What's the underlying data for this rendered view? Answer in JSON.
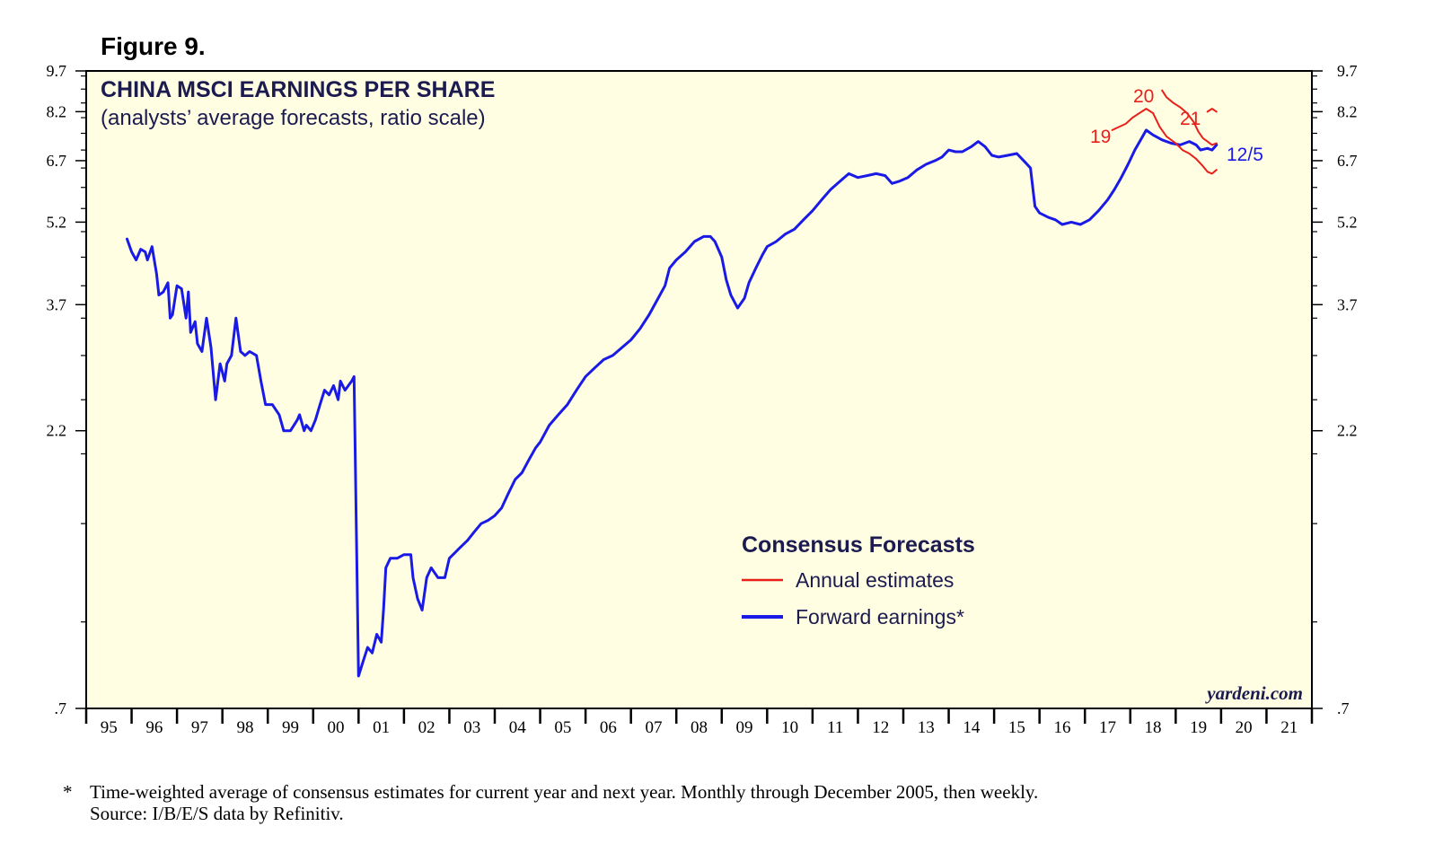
{
  "figure_label": "Figure 9.",
  "footnote": {
    "marker": "*",
    "line1": "Time-weighted average of consensus estimates for current year and next year. Monthly through December 2005, then weekly.",
    "line2": "Source: I/B/E/S data by Refinitiv."
  },
  "chart_data": {
    "type": "line",
    "scale": "log",
    "title": "CHINA MSCI EARNINGS PER SHARE",
    "subtitle": "(analysts’ average forecasts, ratio scale)",
    "ylim": [
      0.7,
      9.7
    ],
    "xlim": [
      1995.0,
      2022.0
    ],
    "y_ticks": [
      9.7,
      8.2,
      6.7,
      5.2,
      3.7,
      2.2,
      0.7
    ],
    "y_tick_labels": [
      "9.7",
      "8.2",
      "6.7",
      "5.2",
      "3.7",
      "2.2",
      ".7"
    ],
    "x_tick_labels": [
      "95",
      "96",
      "97",
      "98",
      "99",
      "00",
      "01",
      "02",
      "03",
      "04",
      "05",
      "06",
      "07",
      "08",
      "09",
      "10",
      "11",
      "12",
      "13",
      "14",
      "15",
      "16",
      "17",
      "18",
      "19",
      "20",
      "21"
    ],
    "legend": {
      "title": "Consensus Forecasts",
      "entries": [
        {
          "label": "Annual estimates",
          "color": "#e8201c"
        },
        {
          "label": "Forward earnings*",
          "color": "#1a1ae6"
        }
      ]
    },
    "watermark": "yardeni.com",
    "last_date_label": "12/5",
    "series": [
      {
        "name": "Forward earnings*",
        "color": "#1a1ae6",
        "points": [
          [
            1995.9,
            4.85
          ],
          [
            1996.0,
            4.6
          ],
          [
            1996.1,
            4.45
          ],
          [
            1996.2,
            4.65
          ],
          [
            1996.3,
            4.6
          ],
          [
            1996.35,
            4.45
          ],
          [
            1996.45,
            4.7
          ],
          [
            1996.55,
            4.2
          ],
          [
            1996.6,
            3.85
          ],
          [
            1996.7,
            3.9
          ],
          [
            1996.8,
            4.05
          ],
          [
            1996.85,
            3.5
          ],
          [
            1996.9,
            3.55
          ],
          [
            1997.0,
            4.0
          ],
          [
            1997.1,
            3.95
          ],
          [
            1997.2,
            3.5
          ],
          [
            1997.25,
            3.9
          ],
          [
            1997.3,
            3.3
          ],
          [
            1997.4,
            3.45
          ],
          [
            1997.45,
            3.15
          ],
          [
            1997.55,
            3.05
          ],
          [
            1997.65,
            3.5
          ],
          [
            1997.75,
            3.1
          ],
          [
            1997.85,
            2.5
          ],
          [
            1997.95,
            2.9
          ],
          [
            1998.0,
            2.8
          ],
          [
            1998.05,
            2.7
          ],
          [
            1998.1,
            2.9
          ],
          [
            1998.2,
            3.0
          ],
          [
            1998.3,
            3.5
          ],
          [
            1998.4,
            3.05
          ],
          [
            1998.5,
            3.0
          ],
          [
            1998.6,
            3.05
          ],
          [
            1998.75,
            3.0
          ],
          [
            1998.85,
            2.7
          ],
          [
            1998.95,
            2.45
          ],
          [
            1999.1,
            2.45
          ],
          [
            1999.25,
            2.35
          ],
          [
            1999.35,
            2.2
          ],
          [
            1999.5,
            2.2
          ],
          [
            1999.65,
            2.3
          ],
          [
            1999.7,
            2.35
          ],
          [
            1999.8,
            2.2
          ],
          [
            1999.85,
            2.25
          ],
          [
            1999.95,
            2.2
          ],
          [
            2000.05,
            2.3
          ],
          [
            2000.15,
            2.45
          ],
          [
            2000.25,
            2.6
          ],
          [
            2000.35,
            2.55
          ],
          [
            2000.45,
            2.65
          ],
          [
            2000.55,
            2.5
          ],
          [
            2000.6,
            2.7
          ],
          [
            2000.7,
            2.6
          ],
          [
            2000.85,
            2.7
          ],
          [
            2000.9,
            2.75
          ],
          [
            2001.0,
            0.8
          ],
          [
            2001.1,
            0.85
          ],
          [
            2001.2,
            0.9
          ],
          [
            2001.3,
            0.88
          ],
          [
            2001.4,
            0.95
          ],
          [
            2001.5,
            0.92
          ],
          [
            2001.55,
            1.05
          ],
          [
            2001.6,
            1.25
          ],
          [
            2001.7,
            1.3
          ],
          [
            2001.85,
            1.3
          ],
          [
            2002.0,
            1.32
          ],
          [
            2002.15,
            1.32
          ],
          [
            2002.2,
            1.2
          ],
          [
            2002.3,
            1.1
          ],
          [
            2002.4,
            1.05
          ],
          [
            2002.5,
            1.2
          ],
          [
            2002.6,
            1.25
          ],
          [
            2002.75,
            1.2
          ],
          [
            2002.9,
            1.2
          ],
          [
            2003.0,
            1.3
          ],
          [
            2003.2,
            1.35
          ],
          [
            2003.4,
            1.4
          ],
          [
            2003.55,
            1.45
          ],
          [
            2003.7,
            1.5
          ],
          [
            2003.85,
            1.52
          ],
          [
            2004.0,
            1.55
          ],
          [
            2004.15,
            1.6
          ],
          [
            2004.3,
            1.7
          ],
          [
            2004.45,
            1.8
          ],
          [
            2004.6,
            1.85
          ],
          [
            2004.75,
            1.95
          ],
          [
            2004.9,
            2.05
          ],
          [
            2005.0,
            2.1
          ],
          [
            2005.2,
            2.25
          ],
          [
            2005.4,
            2.35
          ],
          [
            2005.6,
            2.45
          ],
          [
            2005.8,
            2.6
          ],
          [
            2006.0,
            2.75
          ],
          [
            2006.2,
            2.85
          ],
          [
            2006.4,
            2.95
          ],
          [
            2006.6,
            3.0
          ],
          [
            2006.8,
            3.1
          ],
          [
            2007.0,
            3.2
          ],
          [
            2007.2,
            3.35
          ],
          [
            2007.4,
            3.55
          ],
          [
            2007.6,
            3.8
          ],
          [
            2007.75,
            4.0
          ],
          [
            2007.85,
            4.3
          ],
          [
            2008.0,
            4.45
          ],
          [
            2008.2,
            4.6
          ],
          [
            2008.4,
            4.8
          ],
          [
            2008.6,
            4.9
          ],
          [
            2008.75,
            4.9
          ],
          [
            2008.85,
            4.8
          ],
          [
            2009.0,
            4.5
          ],
          [
            2009.1,
            4.1
          ],
          [
            2009.2,
            3.85
          ],
          [
            2009.35,
            3.65
          ],
          [
            2009.5,
            3.8
          ],
          [
            2009.6,
            4.05
          ],
          [
            2009.75,
            4.3
          ],
          [
            2009.9,
            4.55
          ],
          [
            2010.0,
            4.7
          ],
          [
            2010.2,
            4.8
          ],
          [
            2010.4,
            4.95
          ],
          [
            2010.6,
            5.05
          ],
          [
            2010.8,
            5.25
          ],
          [
            2011.0,
            5.45
          ],
          [
            2011.2,
            5.7
          ],
          [
            2011.4,
            5.95
          ],
          [
            2011.6,
            6.15
          ],
          [
            2011.8,
            6.35
          ],
          [
            2012.0,
            6.25
          ],
          [
            2012.2,
            6.3
          ],
          [
            2012.4,
            6.35
          ],
          [
            2012.6,
            6.3
          ],
          [
            2012.75,
            6.1
          ],
          [
            2012.9,
            6.15
          ],
          [
            2013.1,
            6.25
          ],
          [
            2013.3,
            6.45
          ],
          [
            2013.5,
            6.6
          ],
          [
            2013.7,
            6.7
          ],
          [
            2013.85,
            6.8
          ],
          [
            2014.0,
            7.0
          ],
          [
            2014.15,
            6.95
          ],
          [
            2014.3,
            6.95
          ],
          [
            2014.5,
            7.1
          ],
          [
            2014.65,
            7.25
          ],
          [
            2014.8,
            7.1
          ],
          [
            2014.95,
            6.85
          ],
          [
            2015.1,
            6.8
          ],
          [
            2015.3,
            6.85
          ],
          [
            2015.5,
            6.9
          ],
          [
            2015.65,
            6.7
          ],
          [
            2015.8,
            6.5
          ],
          [
            2015.9,
            5.55
          ],
          [
            2016.0,
            5.4
          ],
          [
            2016.2,
            5.3
          ],
          [
            2016.35,
            5.25
          ],
          [
            2016.5,
            5.15
          ],
          [
            2016.7,
            5.2
          ],
          [
            2016.9,
            5.15
          ],
          [
            2017.1,
            5.25
          ],
          [
            2017.3,
            5.45
          ],
          [
            2017.5,
            5.7
          ],
          [
            2017.65,
            5.95
          ],
          [
            2017.8,
            6.25
          ],
          [
            2017.95,
            6.6
          ],
          [
            2018.1,
            7.0
          ],
          [
            2018.25,
            7.35
          ],
          [
            2018.35,
            7.6
          ],
          [
            2018.5,
            7.45
          ],
          [
            2018.7,
            7.3
          ],
          [
            2018.9,
            7.2
          ],
          [
            2019.1,
            7.15
          ],
          [
            2019.3,
            7.25
          ],
          [
            2019.45,
            7.15
          ],
          [
            2019.55,
            7.0
          ],
          [
            2019.7,
            7.05
          ],
          [
            2019.8,
            7.0
          ],
          [
            2019.9,
            7.15
          ]
        ]
      },
      {
        "name": "Annual estimates 2019",
        "color": "#e8201c",
        "label": "19",
        "points": [
          [
            2017.6,
            7.6
          ],
          [
            2017.75,
            7.7
          ],
          [
            2017.9,
            7.8
          ],
          [
            2018.05,
            8.0
          ],
          [
            2018.2,
            8.15
          ],
          [
            2018.35,
            8.3
          ],
          [
            2018.5,
            8.15
          ],
          [
            2018.65,
            7.7
          ],
          [
            2018.8,
            7.4
          ],
          [
            2019.0,
            7.2
          ],
          [
            2019.15,
            7.0
          ],
          [
            2019.3,
            6.9
          ],
          [
            2019.45,
            6.75
          ],
          [
            2019.6,
            6.55
          ],
          [
            2019.7,
            6.4
          ],
          [
            2019.8,
            6.35
          ],
          [
            2019.9,
            6.45
          ]
        ]
      },
      {
        "name": "Annual estimates 2020",
        "color": "#e8201c",
        "label": "20",
        "points": [
          [
            2018.7,
            8.95
          ],
          [
            2018.8,
            8.7
          ],
          [
            2018.95,
            8.5
          ],
          [
            2019.1,
            8.35
          ],
          [
            2019.25,
            8.15
          ],
          [
            2019.4,
            7.85
          ],
          [
            2019.5,
            7.55
          ],
          [
            2019.6,
            7.35
          ],
          [
            2019.7,
            7.25
          ],
          [
            2019.8,
            7.15
          ],
          [
            2019.9,
            7.2
          ]
        ]
      },
      {
        "name": "Annual estimates 2021",
        "color": "#e8201c",
        "label": "21",
        "points": [
          [
            2019.7,
            8.2
          ],
          [
            2019.8,
            8.3
          ],
          [
            2019.9,
            8.2
          ]
        ]
      }
    ]
  }
}
